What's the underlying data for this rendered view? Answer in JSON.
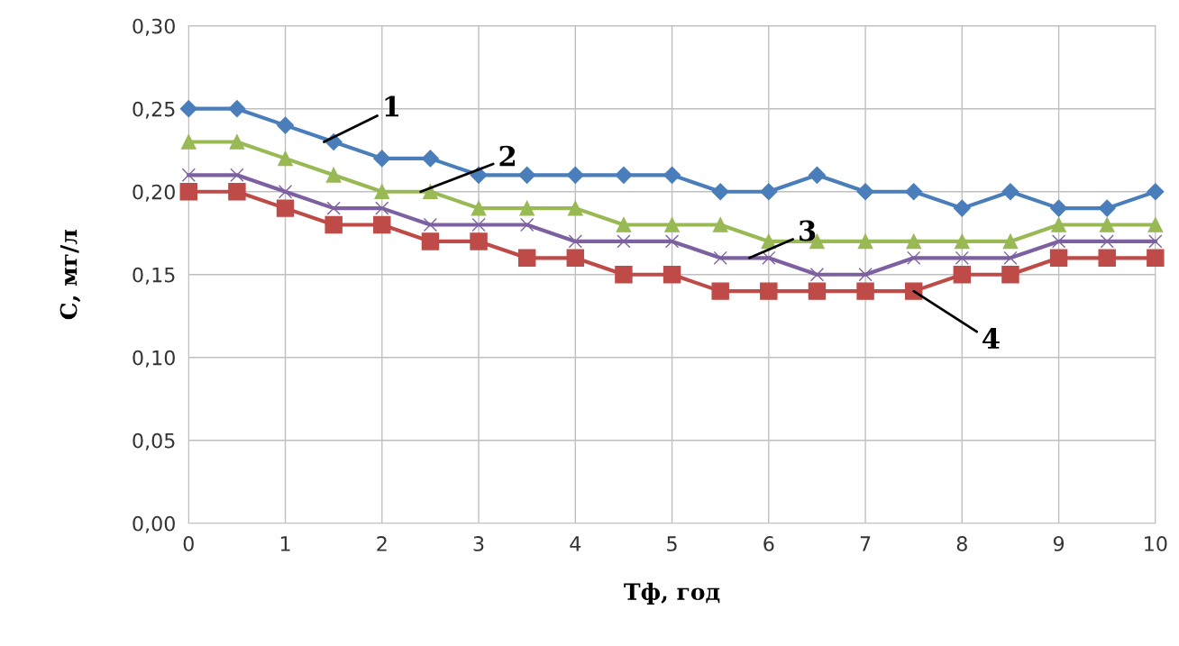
{
  "chart_data": {
    "type": "line",
    "xlabel": "Тф, год",
    "ylabel": "С, мг/л",
    "x": [
      0,
      0.5,
      1,
      1.5,
      2,
      2.5,
      3,
      3.5,
      4,
      4.5,
      5,
      5.5,
      6,
      6.5,
      7,
      7.5,
      8,
      8.5,
      9,
      9.5,
      10
    ],
    "series": [
      {
        "color": "#4a7ebb",
        "marker": "diamond",
        "values": [
          0.25,
          0.25,
          0.24,
          0.23,
          0.22,
          0.22,
          0.21,
          0.21,
          0.21,
          0.21,
          0.21,
          0.2,
          0.2,
          0.21,
          0.2,
          0.2,
          0.19,
          0.2,
          0.19,
          0.19,
          0.2
        ]
      },
      {
        "color": "#98b954",
        "marker": "triangle",
        "values": [
          0.23,
          0.23,
          0.22,
          0.21,
          0.2,
          0.2,
          0.19,
          0.19,
          0.19,
          0.18,
          0.18,
          0.18,
          0.17,
          0.17,
          0.17,
          0.17,
          0.17,
          0.17,
          0.18,
          0.18,
          0.18
        ]
      },
      {
        "color": "#7d60a0",
        "marker": "cross",
        "values": [
          0.21,
          0.21,
          0.2,
          0.19,
          0.19,
          0.18,
          0.18,
          0.18,
          0.17,
          0.17,
          0.17,
          0.16,
          0.16,
          0.15,
          0.15,
          0.16,
          0.16,
          0.16,
          0.17,
          0.17,
          0.17
        ]
      },
      {
        "color": "#be4b48",
        "marker": "square",
        "values": [
          0.2,
          0.2,
          0.19,
          0.18,
          0.18,
          0.17,
          0.17,
          0.16,
          0.16,
          0.15,
          0.15,
          0.14,
          0.14,
          0.14,
          0.14,
          0.14,
          0.15,
          0.15,
          0.16,
          0.16,
          0.16
        ]
      }
    ],
    "xlim": [
      0,
      10
    ],
    "xticks": [
      0,
      1,
      2,
      3,
      4,
      5,
      6,
      7,
      8,
      9,
      10
    ],
    "ylim": [
      0,
      0.3
    ],
    "yticks": [
      {
        "value": 0,
        "label": "0,00"
      },
      {
        "value": 0.05,
        "label": "0,05"
      },
      {
        "value": 0.1,
        "label": "0,10"
      },
      {
        "value": 0.15,
        "label": "0,15"
      },
      {
        "value": 0.2,
        "label": "0,20"
      },
      {
        "value": 0.25,
        "label": "0,25"
      },
      {
        "value": 0.3,
        "label": "0,30"
      }
    ],
    "grid": true,
    "annotations": [
      {
        "text": "1",
        "x": 1.4,
        "y": 0.23
      },
      {
        "text": "2",
        "x": 2.4,
        "y": 0.2
      },
      {
        "text": "3",
        "x": 5.8,
        "y": 0.16
      },
      {
        "text": "4",
        "x": 7.5,
        "y": 0.14
      }
    ]
  }
}
